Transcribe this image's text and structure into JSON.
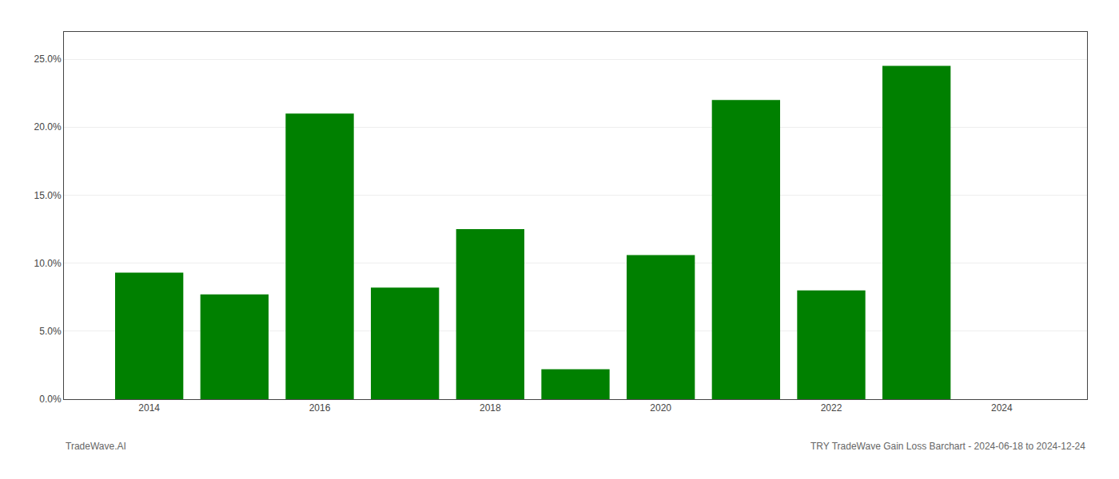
{
  "chart_data": {
    "type": "bar",
    "x": [
      2014,
      2015,
      2016,
      2017,
      2018,
      2019,
      2020,
      2021,
      2022,
      2023
    ],
    "values": [
      0.093,
      0.077,
      0.21,
      0.082,
      0.125,
      0.022,
      0.106,
      0.22,
      0.08,
      0.245
    ],
    "color": "#008000",
    "xlim": [
      2013.0,
      2025.0
    ],
    "xticks": [
      2014,
      2016,
      2018,
      2020,
      2022,
      2024
    ],
    "ylim": [
      0,
      0.27
    ],
    "yticks": [
      {
        "value": 0.0,
        "label": "0.0%"
      },
      {
        "value": 0.05,
        "label": "5.0%"
      },
      {
        "value": 0.1,
        "label": "10.0%"
      },
      {
        "value": 0.15,
        "label": "15.0%"
      },
      {
        "value": 0.2,
        "label": "20.0%"
      },
      {
        "value": 0.25,
        "label": "25.0%"
      }
    ],
    "grid": true,
    "annotations": [
      "TradeWave.AI",
      "TRY TradeWave Gain Loss Barchart - 2024-06-18 to 2024-12-24"
    ]
  }
}
